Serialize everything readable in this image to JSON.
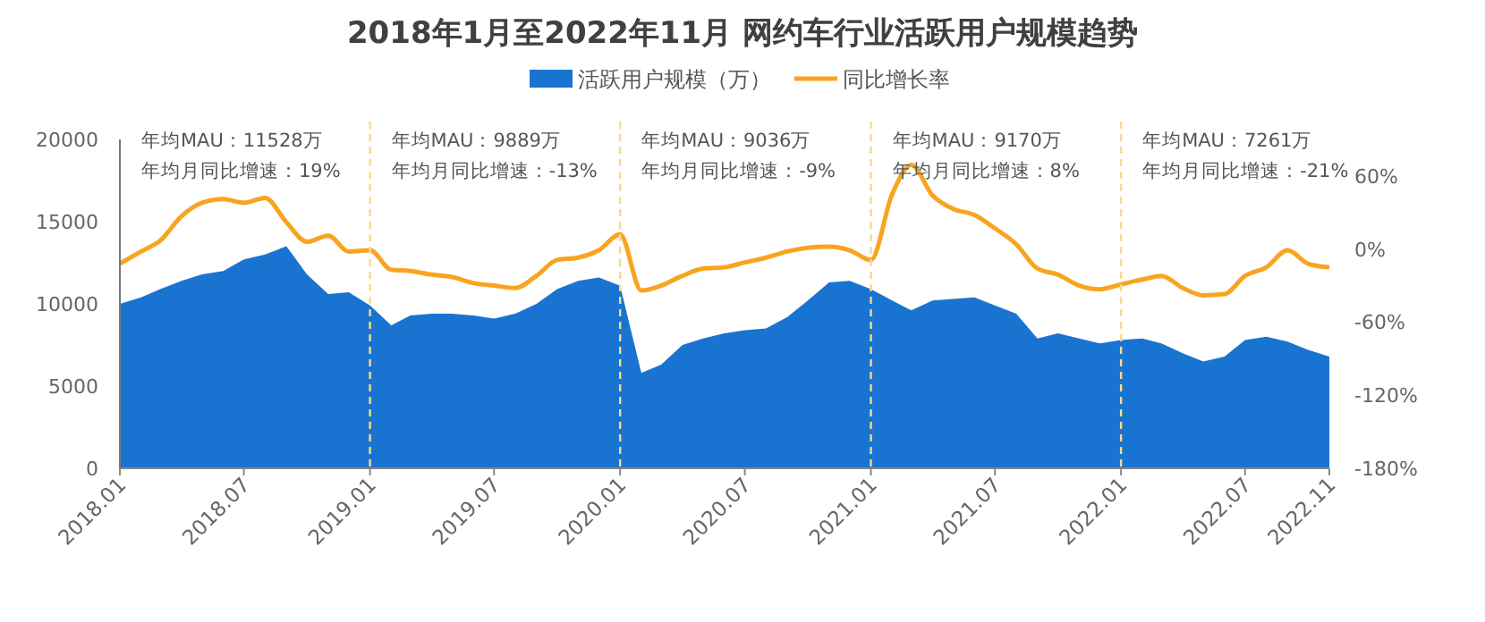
{
  "chart_data": {
    "type": "area",
    "title": "2018年1月至2022年11月 网约车行业活跃用户规模趋势",
    "x": [
      "2018-01",
      "2018-02",
      "2018-03",
      "2018-04",
      "2018-05",
      "2018-06",
      "2018-07",
      "2018-08",
      "2018-09",
      "2018-10",
      "2018-11",
      "2018-12",
      "2019-01",
      "2019-02",
      "2019-03",
      "2019-04",
      "2019-05",
      "2019-06",
      "2019-07",
      "2019-08",
      "2019-09",
      "2019-10",
      "2019-11",
      "2019-12",
      "2020-01",
      "2020-02",
      "2020-03",
      "2020-04",
      "2020-05",
      "2020-06",
      "2020-07",
      "2020-08",
      "2020-09",
      "2020-10",
      "2020-11",
      "2020-12",
      "2021-01",
      "2021-02",
      "2021-03",
      "2021-04",
      "2021-05",
      "2021-06",
      "2021-07",
      "2021-08",
      "2021-09",
      "2021-10",
      "2021-11",
      "2021-12",
      "2022-01",
      "2022-02",
      "2022-03",
      "2022-04",
      "2022-05",
      "2022-06",
      "2022-07",
      "2022-08",
      "2022-09",
      "2022-10",
      "2022-11"
    ],
    "series": [
      {
        "name": "活跃用户规模（万）",
        "color": "#1874d0",
        "values": [
          10000,
          10400,
          10900,
          11400,
          11800,
          12000,
          12700,
          13000,
          13500,
          11800,
          10600,
          10700,
          9900,
          8700,
          9300,
          9400,
          9400,
          9300,
          9100,
          9400,
          10000,
          10900,
          11400,
          11600,
          11100,
          5800,
          6300,
          7500,
          7900,
          8200,
          8400,
          8500,
          9200,
          10200,
          11300,
          11400,
          10900,
          10200,
          9600,
          10200,
          10300,
          10400,
          9900,
          9400,
          7900,
          8200,
          7900,
          7600,
          7800,
          7900,
          7600,
          7000,
          6500,
          6800,
          7800,
          8000,
          7700,
          7200,
          6800
        ]
      },
      {
        "name": "同比增长率",
        "type": "line",
        "axis": "y2",
        "color": "#f7a520",
        "values": [
          -12,
          -2,
          7,
          27,
          38,
          41,
          38,
          42,
          22,
          6,
          11,
          -2,
          -1,
          -17,
          -18,
          -21,
          -23,
          -28,
          -30,
          -32,
          -22,
          -9,
          -7,
          -1,
          12,
          -34,
          -30,
          -22,
          -16,
          -15,
          -11,
          -7,
          -2,
          1,
          2,
          -1,
          -9,
          45,
          69,
          44,
          33,
          28,
          17,
          4,
          -16,
          -21,
          -30,
          -33,
          -29,
          -25,
          -22,
          -32,
          -38,
          -37,
          -22,
          -15,
          -1,
          -12,
          -15
        ]
      }
    ],
    "xlim": [
      "2018-01",
      "2022-11"
    ],
    "xticks": [
      {
        "value": "2018-01",
        "label": "2018.01"
      },
      {
        "value": "2018-07",
        "label": "2018.07"
      },
      {
        "value": "2019-01",
        "label": "2019.01"
      },
      {
        "value": "2019-07",
        "label": "2019.07"
      },
      {
        "value": "2020-01",
        "label": "2020.01"
      },
      {
        "value": "2020-07",
        "label": "2020.07"
      },
      {
        "value": "2021-01",
        "label": "2021.01"
      },
      {
        "value": "2021-07",
        "label": "2021.07"
      },
      {
        "value": "2022-01",
        "label": "2022.01"
      },
      {
        "value": "2022-07",
        "label": "2022.07"
      },
      {
        "value": "2022-11",
        "label": "2022.11"
      }
    ],
    "ylim": [
      0,
      20000
    ],
    "yticks": [
      0,
      5000,
      10000,
      15000,
      20000
    ],
    "y2lim": [
      -180,
      90
    ],
    "y2ticks": [
      {
        "value": -180,
        "label": "-180%"
      },
      {
        "value": -120,
        "label": "-120%"
      },
      {
        "value": -60,
        "label": "-60%"
      },
      {
        "value": 0,
        "label": "0%"
      },
      {
        "value": 60,
        "label": "60%"
      }
    ],
    "ref_lines": [
      {
        "axis": "x",
        "value": "2019-01",
        "color": "#f9d98f",
        "line_style": "dashed"
      },
      {
        "axis": "x",
        "value": "2020-01",
        "color": "#f9d98f",
        "line_style": "dashed"
      },
      {
        "axis": "x",
        "value": "2021-01",
        "color": "#f9d98f",
        "line_style": "dashed"
      },
      {
        "axis": "x",
        "value": "2022-01",
        "color": "#f9d98f",
        "line_style": "dashed"
      }
    ],
    "annotations": [
      "年均MAU：11528万",
      "年均月同比增速：19%",
      "年均MAU：9889万",
      "年均月同比增速：-13%",
      "年均MAU：9036万",
      "年均月同比增速：-9%",
      "年均MAU：9170万",
      "年均月同比增速：8%",
      "年均MAU：7261万",
      "年均月同比增速：-21%"
    ],
    "legend": "top",
    "grid": false,
    "marker": "none"
  }
}
